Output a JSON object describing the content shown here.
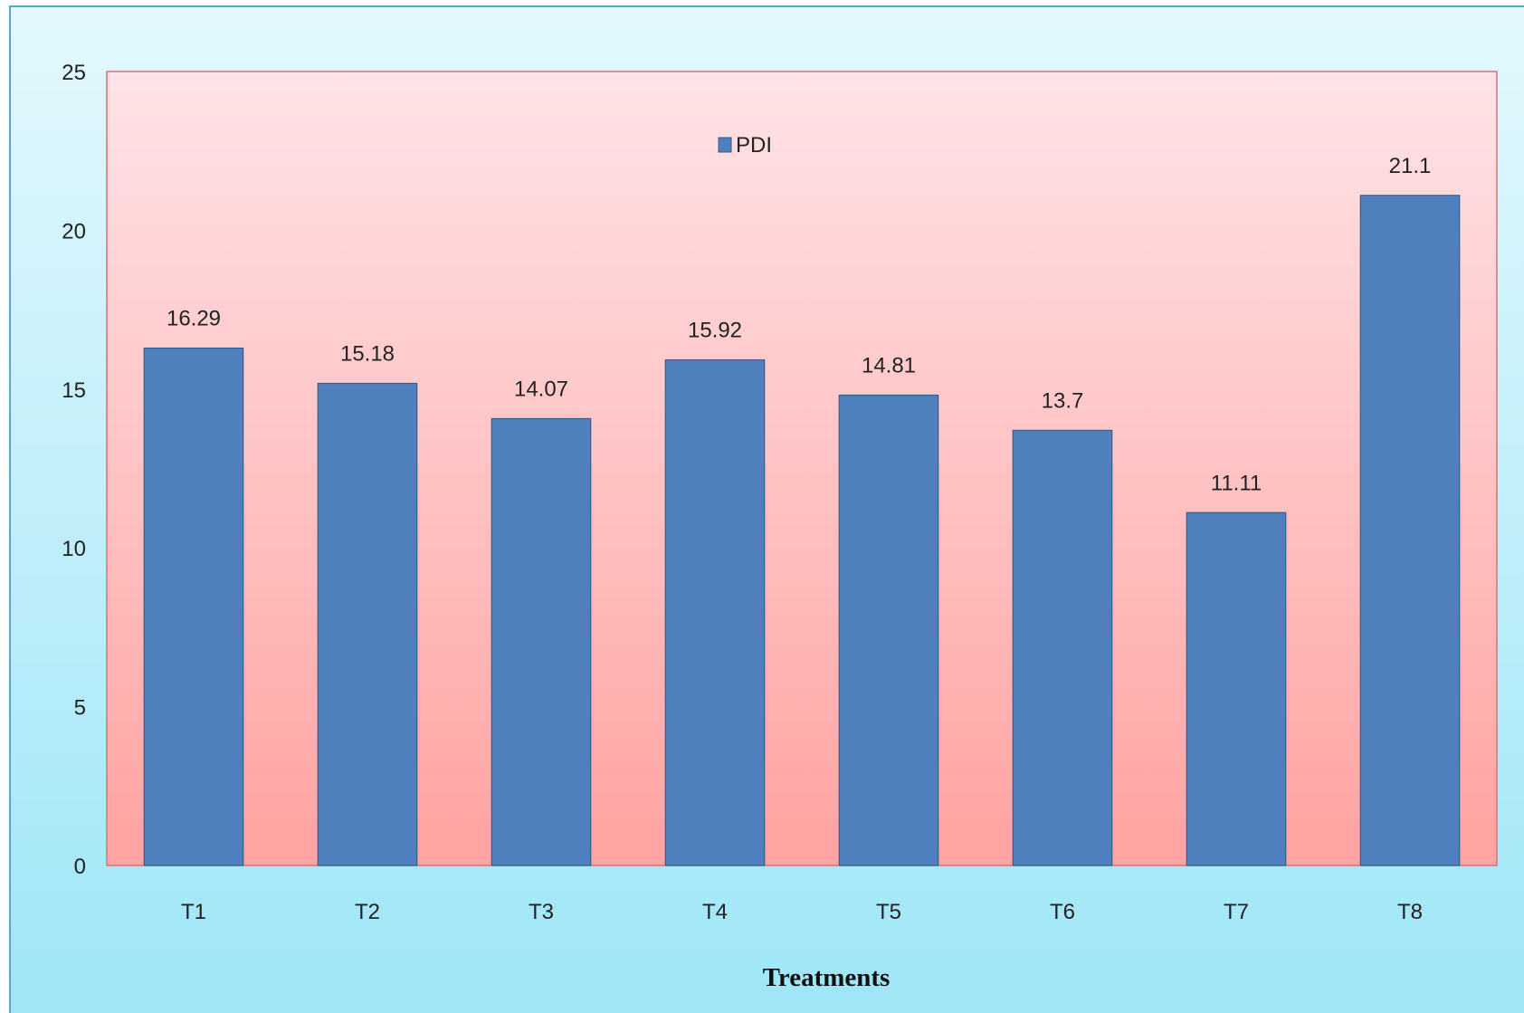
{
  "chart_data": {
    "type": "bar",
    "title": "",
    "xlabel": "Treatments",
    "ylabel": "",
    "categories": [
      "T1",
      "T2",
      "T3",
      "T4",
      "T5",
      "T6",
      "T7",
      "T8"
    ],
    "series": [
      {
        "name": "PDI",
        "color": "#4f80bd",
        "values": [
          16.29,
          15.18,
          14.07,
          15.92,
          14.81,
          13.7,
          11.11,
          21.1
        ]
      }
    ],
    "value_labels": [
      "16.29",
      "15.18",
      "14.07",
      "15.92",
      "14.81",
      "13.7",
      "11.11",
      "21.1"
    ],
    "ylim": [
      0,
      25
    ],
    "yticks": [
      "0",
      "5",
      "10",
      "15",
      "20",
      "25"
    ],
    "grid": false,
    "legend_position": "top-center",
    "plot_background": "gradient #ffe3e6 to #ffa3a1",
    "chart_background": "gradient #e3f8fd to #9fe6f7"
  }
}
